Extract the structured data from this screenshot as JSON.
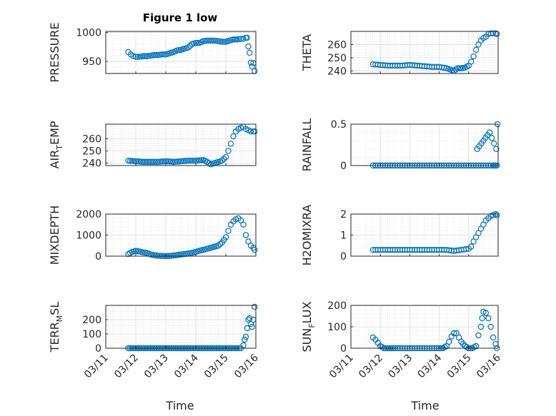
{
  "title": "Figure 1 low",
  "xlabel": "Time",
  "x_ticks": [
    "03/11",
    "03/12",
    "03/13",
    "03/14",
    "03/15",
    "03/16"
  ],
  "marker_color": "#0072bd",
  "chart_data": [
    {
      "type": "scatter",
      "ylabel": "PRESSURE",
      "yticks": [
        "950",
        "1000"
      ],
      "ylim": [
        929,
        1002
      ],
      "xlim": [
        "03/11",
        "03/16"
      ],
      "grid": true,
      "x": [
        "03/11 18:00",
        "03/11 20:00",
        "03/11 22:00",
        "03/12 00:00",
        "03/12 03:00",
        "03/12 06:00",
        "03/12 09:00",
        "03/12 12:00",
        "03/12 15:00",
        "03/12 18:00",
        "03/12 21:00",
        "03/13 00:00",
        "03/13 03:00",
        "03/13 06:00",
        "03/13 09:00",
        "03/13 12:00",
        "03/13 15:00",
        "03/13 18:00",
        "03/13 21:00",
        "03/14 00:00",
        "03/14 03:00",
        "03/14 06:00",
        "03/14 09:00",
        "03/14 12:00",
        "03/14 15:00",
        "03/14 18:00",
        "03/14 21:00",
        "03/15 00:00",
        "03/15 03:00",
        "03/15 06:00",
        "03/15 09:00",
        "03/15 12:00",
        "03/15 14:00",
        "03/15 16:00",
        "03/15 17:00",
        "03/15 18:00",
        "03/15 19:00",
        "03/15 20:00",
        "03/15 21:00",
        "03/15 22:00",
        "03/15 23:00"
      ],
      "y": [
        966,
        962,
        959,
        958,
        958,
        959,
        959,
        960,
        961,
        961,
        962,
        962,
        964,
        966,
        969,
        970,
        972,
        974,
        980,
        982,
        982,
        985,
        986,
        986,
        986,
        985,
        984,
        984,
        986,
        988,
        988,
        989,
        989,
        991,
        991,
        976,
        965,
        948,
        941,
        947,
        933
      ]
    },
    {
      "type": "scatter",
      "ylabel": "THETA",
      "yticks": [
        "240",
        "250",
        "260"
      ],
      "ylim": [
        238,
        270
      ],
      "xlim": [
        "03/11",
        "03/16"
      ],
      "grid": true,
      "x": [
        "03/11 18:00",
        "03/12 00:00",
        "03/12 06:00",
        "03/12 12:00",
        "03/12 18:00",
        "03/13 00:00",
        "03/13 06:00",
        "03/13 12:00",
        "03/13 18:00",
        "03/14 00:00",
        "03/14 06:00",
        "03/14 09:00",
        "03/14 12:00",
        "03/14 15:00",
        "03/14 18:00",
        "03/14 21:00",
        "03/15 00:00",
        "03/15 02:00",
        "03/15 04:00",
        "03/15 06:00",
        "03/15 08:00",
        "03/15 10:00",
        "03/15 12:00",
        "03/15 14:00",
        "03/15 16:00",
        "03/15 18:00",
        "03/15 20:00",
        "03/15 22:00",
        "03/15 23:00"
      ],
      "y": [
        245,
        244.5,
        244,
        244,
        244,
        244.5,
        244,
        243.5,
        243,
        243,
        242,
        241,
        240,
        242,
        242,
        242.5,
        244,
        247,
        251,
        256,
        260,
        263,
        265,
        266,
        268,
        268.5,
        268.5,
        268.5,
        268
      ]
    },
    {
      "type": "scatter",
      "ylabel": "AIR_TEMP",
      "ylabel_main": "AIR",
      "ylabel_sub": "T",
      "ylabel_rest": "EMP",
      "yticks": [
        "240",
        "250",
        "260"
      ],
      "ylim": [
        238,
        272
      ],
      "xlim": [
        "03/11",
        "03/16"
      ],
      "grid": true,
      "x": [
        "03/11 18:00",
        "03/12 00:00",
        "03/12 06:00",
        "03/12 12:00",
        "03/12 18:00",
        "03/13 00:00",
        "03/13 06:00",
        "03/13 12:00",
        "03/13 18:00",
        "03/14 00:00",
        "03/14 06:00",
        "03/14 09:00",
        "03/14 12:00",
        "03/14 15:00",
        "03/14 18:00",
        "03/14 21:00",
        "03/15 00:00",
        "03/15 02:00",
        "03/15 04:00",
        "03/15 06:00",
        "03/15 08:00",
        "03/15 10:00",
        "03/15 12:00",
        "03/15 14:00",
        "03/15 16:00",
        "03/15 18:00",
        "03/15 20:00",
        "03/15 22:00",
        "03/15 23:00"
      ],
      "y": [
        242,
        241.5,
        241,
        241,
        241,
        241.5,
        241,
        241.5,
        242,
        242,
        242.5,
        241,
        239,
        240,
        241,
        242,
        245,
        250,
        256,
        262,
        266,
        268,
        269,
        270,
        268,
        267,
        266,
        266,
        266
      ]
    },
    {
      "type": "scatter",
      "ylabel": "RAINFALL",
      "yticks": [
        "0",
        "0.5"
      ],
      "ylim": [
        0,
        0.5
      ],
      "xlim": [
        "03/11",
        "03/16"
      ],
      "grid": true,
      "x": [
        "03/11 18:00",
        "03/12 00:00",
        "03/12 06:00",
        "03/12 12:00",
        "03/12 18:00",
        "03/13 00:00",
        "03/13 06:00",
        "03/13 12:00",
        "03/13 18:00",
        "03/14 00:00",
        "03/14 06:00",
        "03/14 12:00",
        "03/14 18:00",
        "03/15 00:00",
        "03/15 06:00",
        "03/15 12:00",
        "03/15 18:00",
        "03/15 20:00",
        "03/15 21:00",
        "03/15 22:00",
        "03/15 23:00",
        "03/15 07:00",
        "03/15 17:00",
        "03/15 22:30",
        "03/15 23:30"
      ],
      "y": [
        0,
        0,
        0,
        0,
        0,
        0,
        0,
        0,
        0,
        0,
        0,
        0,
        0,
        0,
        0,
        0,
        0,
        0,
        0,
        0,
        0,
        0.2,
        0.4,
        0.2,
        0.5
      ]
    },
    {
      "type": "scatter",
      "ylabel": "MIXDEPTH",
      "yticks": [
        "0",
        "1000",
        "2000"
      ],
      "ylim": [
        0,
        2000
      ],
      "xlim": [
        "03/11",
        "03/16"
      ],
      "grid": true,
      "x": [
        "03/11 18:00",
        "03/11 21:00",
        "03/12 00:00",
        "03/12 03:00",
        "03/12 06:00",
        "03/12 09:00",
        "03/12 12:00",
        "03/12 15:00",
        "03/12 18:00",
        "03/12 21:00",
        "03/13 00:00",
        "03/13 03:00",
        "03/13 06:00",
        "03/13 09:00",
        "03/13 12:00",
        "03/13 15:00",
        "03/13 18:00",
        "03/13 21:00",
        "03/14 00:00",
        "03/14 03:00",
        "03/14 06:00",
        "03/14 09:00",
        "03/14 12:00",
        "03/14 15:00",
        "03/14 18:00",
        "03/14 21:00",
        "03/15 00:00",
        "03/15 02:00",
        "03/15 04:00",
        "03/15 06:00",
        "03/15 08:00",
        "03/15 10:00",
        "03/15 12:00",
        "03/15 14:00",
        "03/15 16:00",
        "03/15 18:00",
        "03/15 20:00",
        "03/15 22:00",
        "03/15 23:00"
      ],
      "y": [
        100,
        200,
        250,
        220,
        180,
        150,
        80,
        40,
        20,
        10,
        0,
        10,
        30,
        50,
        80,
        100,
        130,
        160,
        200,
        260,
        300,
        350,
        400,
        450,
        500,
        650,
        900,
        1200,
        1500,
        1650,
        1750,
        1800,
        1700,
        1500,
        1000,
        700,
        500,
        400,
        300
      ]
    },
    {
      "type": "scatter",
      "ylabel": "H2OMIXRA",
      "yticks": [
        "0",
        "1",
        "2"
      ],
      "ylim": [
        0,
        2
      ],
      "xlim": [
        "03/11",
        "03/16"
      ],
      "grid": true,
      "x": [
        "03/11 18:00",
        "03/12 00:00",
        "03/12 06:00",
        "03/12 12:00",
        "03/12 18:00",
        "03/13 00:00",
        "03/13 06:00",
        "03/13 12:00",
        "03/13 18:00",
        "03/14 00:00",
        "03/14 06:00",
        "03/14 12:00",
        "03/14 18:00",
        "03/15 00:00",
        "03/15 02:00",
        "03/15 04:00",
        "03/15 06:00",
        "03/15 08:00",
        "03/15 10:00",
        "03/15 12:00",
        "03/15 14:00",
        "03/15 16:00",
        "03/15 18:00",
        "03/15 20:00",
        "03/15 22:00",
        "03/15 23:00"
      ],
      "y": [
        0.3,
        0.3,
        0.3,
        0.3,
        0.3,
        0.3,
        0.3,
        0.3,
        0.3,
        0.3,
        0.3,
        0.25,
        0.3,
        0.35,
        0.45,
        0.7,
        0.9,
        1.1,
        1.3,
        1.5,
        1.7,
        1.8,
        1.9,
        1.95,
        2.0,
        1.95
      ]
    },
    {
      "type": "scatter",
      "ylabel": "TERR_MSL",
      "ylabel_main": "TERR",
      "ylabel_sub": "M",
      "ylabel_rest": "SL",
      "yticks": [
        "0",
        "100",
        "200"
      ],
      "ylim": [
        0,
        300
      ],
      "xlim": [
        "03/11",
        "03/16"
      ],
      "grid": true,
      "x": [
        "03/11 18:00",
        "03/12 00:00",
        "03/12 06:00",
        "03/12 12:00",
        "03/12 18:00",
        "03/13 00:00",
        "03/13 06:00",
        "03/13 12:00",
        "03/13 18:00",
        "03/14 00:00",
        "03/14 06:00",
        "03/14 12:00",
        "03/14 18:00",
        "03/15 00:00",
        "03/15 06:00",
        "03/15 12:00",
        "03/15 14:00",
        "03/15 15:00",
        "03/15 16:00",
        "03/15 17:00",
        "03/15 18:00",
        "03/15 19:00",
        "03/15 20:00",
        "03/15 21:00",
        "03/15 22:00",
        "03/15 23:00"
      ],
      "y": [
        0,
        0,
        0,
        0,
        0,
        0,
        0,
        0,
        0,
        0,
        0,
        0,
        0,
        0,
        0,
        0,
        20,
        60,
        80,
        140,
        200,
        210,
        170,
        150,
        200,
        290
      ]
    },
    {
      "type": "scatter",
      "ylabel": "SUN_FLUX",
      "ylabel_main": "SUN",
      "ylabel_sub": "F",
      "ylabel_rest": "LUX",
      "yticks": [
        "0",
        "100",
        "200"
      ],
      "ylim": [
        0,
        200
      ],
      "xlim": [
        "03/11",
        "03/16"
      ],
      "grid": true,
      "x": [
        "03/11 18:00",
        "03/11 20:00",
        "03/11 22:00",
        "03/12 00:00",
        "03/12 03:00",
        "03/12 06:00",
        "03/12 09:00",
        "03/12 12:00",
        "03/12 18:00",
        "03/13 00:00",
        "03/13 06:00",
        "03/13 12:00",
        "03/13 18:00",
        "03/14 00:00",
        "03/14 03:00",
        "03/14 06:00",
        "03/14 08:00",
        "03/14 10:00",
        "03/14 12:00",
        "03/14 14:00",
        "03/14 16:00",
        "03/14 18:00",
        "03/14 21:00",
        "03/15 00:00",
        "03/15 03:00",
        "03/15 06:00",
        "03/15 08:00",
        "03/15 10:00",
        "03/15 11:00",
        "03/15 12:00",
        "03/15 14:00",
        "03/15 16:00",
        "03/15 18:00",
        "03/15 20:00",
        "03/15 22:00",
        "03/15 23:00"
      ],
      "y": [
        50,
        40,
        25,
        10,
        0,
        0,
        0,
        0,
        0,
        0,
        0,
        0,
        0,
        0,
        0,
        10,
        30,
        55,
        70,
        70,
        50,
        30,
        10,
        0,
        0,
        10,
        60,
        100,
        140,
        170,
        165,
        140,
        100,
        50,
        20,
        0
      ]
    }
  ]
}
